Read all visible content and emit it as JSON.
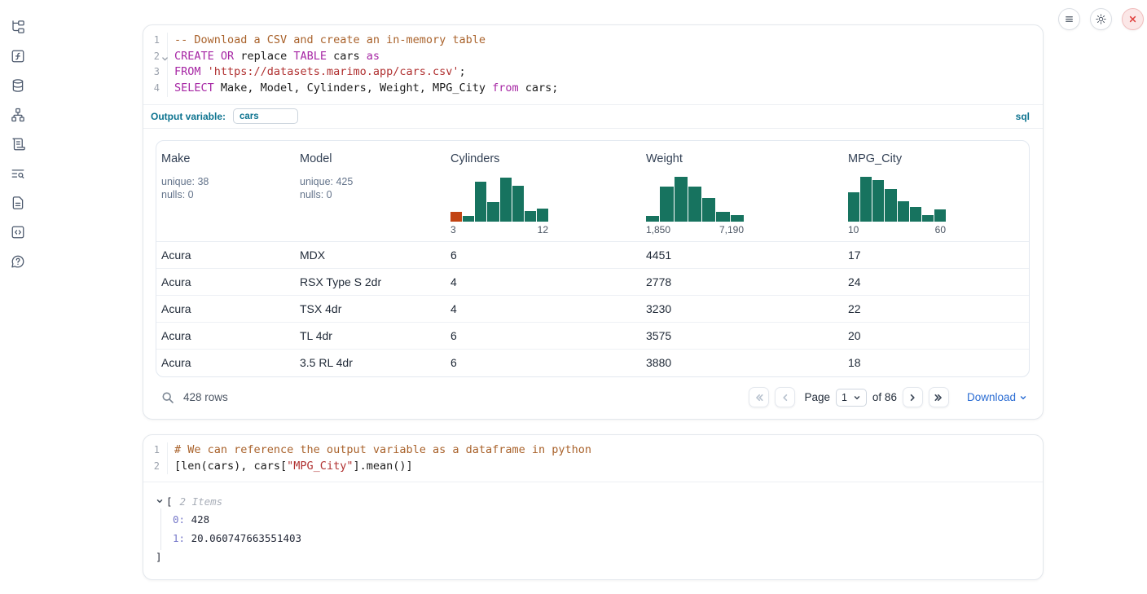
{
  "colors": {
    "hist_green": "#17735F",
    "hist_highlight_orange": "#C24414",
    "keyword_purple": "#A626A4",
    "string_red": "#B03030",
    "comment_brown": "#A9622B",
    "accent_teal": "#0E7490",
    "link_blue": "#2A6CD3",
    "danger_red": "#E0423F"
  },
  "sidebar": {
    "items": [
      {
        "icon": "file-tree-icon"
      },
      {
        "icon": "function-square-icon"
      },
      {
        "icon": "database-icon"
      },
      {
        "icon": "dependency-graph-icon"
      },
      {
        "icon": "scroll-icon"
      },
      {
        "icon": "log-search-icon"
      },
      {
        "icon": "document-icon"
      },
      {
        "icon": "snippets-icon"
      },
      {
        "icon": "help-icon"
      }
    ]
  },
  "top_actions": [
    {
      "icon": "menu-icon"
    },
    {
      "icon": "gear-icon"
    },
    {
      "icon": "shutdown-icon"
    }
  ],
  "sql_cell": {
    "lines": [
      {
        "no": "1",
        "tokens": [
          [
            "com",
            "-- Download a CSV and create an in-memory table"
          ]
        ]
      },
      {
        "no": "2",
        "fold": true,
        "tokens": [
          [
            "kw",
            "CREATE"
          ],
          [
            "pl",
            " "
          ],
          [
            "kw",
            "OR"
          ],
          [
            "pl",
            " replace "
          ],
          [
            "kw",
            "TABLE"
          ],
          [
            "pl",
            " cars "
          ],
          [
            "kw",
            "as"
          ]
        ]
      },
      {
        "no": "3",
        "tokens": [
          [
            "kw",
            "FROM"
          ],
          [
            "pl",
            " "
          ],
          [
            "str",
            "'https://datasets.marimo.app/cars.csv'"
          ],
          [
            "pl",
            ";"
          ]
        ]
      },
      {
        "no": "4",
        "tokens": [
          [
            "kw",
            "SELECT"
          ],
          [
            "pl",
            " Make, Model, Cylinders, Weight, MPG_City "
          ],
          [
            "kw",
            "from"
          ],
          [
            "pl",
            " cars;"
          ]
        ]
      }
    ],
    "output_variable_label": "Output variable:",
    "output_variable_value": "cars",
    "language_badge": "sql"
  },
  "table": {
    "columns": [
      {
        "name": "Make",
        "type": "stats",
        "unique": "unique: 38",
        "nulls": "nulls: 0"
      },
      {
        "name": "Model",
        "type": "stats",
        "unique": "unique: 425",
        "nulls": "nulls: 0"
      },
      {
        "name": "Cylinders",
        "type": "hist",
        "min_label": "3",
        "max_label": "12",
        "bars": [
          22,
          12,
          88,
          44,
          97,
          80,
          24,
          29
        ],
        "highlight_bin": 0
      },
      {
        "name": "Weight",
        "type": "hist",
        "min_label": "1,850",
        "max_label": "7,190",
        "bars": [
          13,
          78,
          100,
          77,
          52,
          21,
          14
        ]
      },
      {
        "name": "MPG_City",
        "type": "hist",
        "min_label": "10",
        "max_label": "60",
        "bars": [
          65,
          100,
          92,
          72,
          45,
          33,
          14,
          26
        ]
      }
    ],
    "rows": [
      [
        "Acura",
        "MDX",
        "6",
        "4451",
        "17"
      ],
      [
        "Acura",
        "RSX Type S 2dr",
        "4",
        "2778",
        "24"
      ],
      [
        "Acura",
        "TSX 4dr",
        "4",
        "3230",
        "22"
      ],
      [
        "Acura",
        "TL 4dr",
        "6",
        "3575",
        "20"
      ],
      [
        "Acura",
        "3.5 RL 4dr",
        "6",
        "3880",
        "18"
      ]
    ],
    "footer": {
      "row_count": "428 rows",
      "page_label": "Page",
      "page_value": "1",
      "of_label": "of 86",
      "download": "Download"
    }
  },
  "python_cell": {
    "lines": [
      {
        "no": "1",
        "tokens": [
          [
            "com",
            "# We can reference the output variable as a dataframe in python"
          ]
        ]
      },
      {
        "no": "2",
        "tokens": [
          [
            "pl",
            "[len(cars), cars["
          ],
          [
            "str",
            "\"MPG_City\""
          ],
          [
            "pl",
            "].mean()]"
          ]
        ]
      }
    ]
  },
  "output_tree": {
    "bracket_open": "[",
    "items_label": "2 Items",
    "entries": [
      {
        "key": "0",
        "sep": ": ",
        "value": "428"
      },
      {
        "key": "1",
        "sep": ": ",
        "value": "20.060747663551403"
      }
    ],
    "bracket_close": "]"
  }
}
